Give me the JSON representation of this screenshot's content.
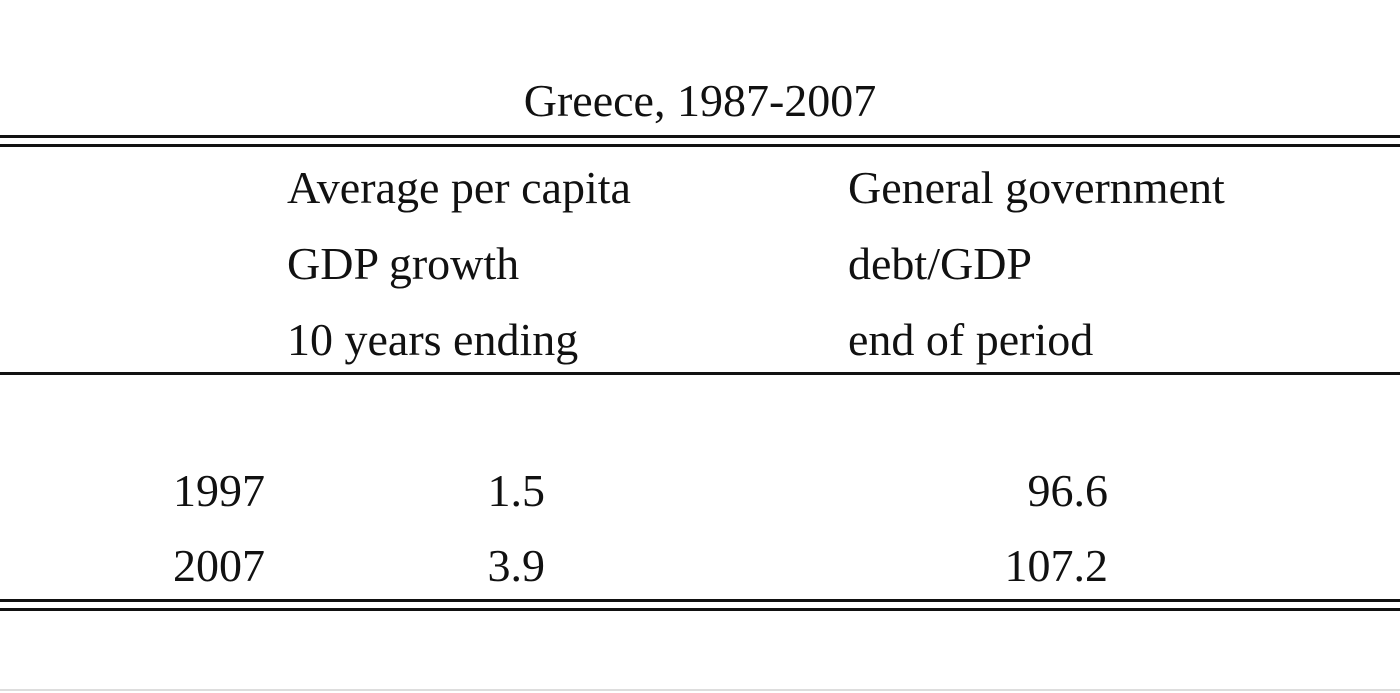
{
  "title": "Greece, 1987-2007",
  "table": {
    "columns": [
      {
        "lines": [
          "Average per capita",
          "GDP growth",
          "10 years ending"
        ]
      },
      {
        "lines": [
          "General government",
          "debt/GDP",
          "end of period"
        ]
      }
    ],
    "rows": [
      [
        1997,
        1.5,
        96.6
      ],
      [
        2007,
        3.9,
        107.2
      ]
    ]
  }
}
